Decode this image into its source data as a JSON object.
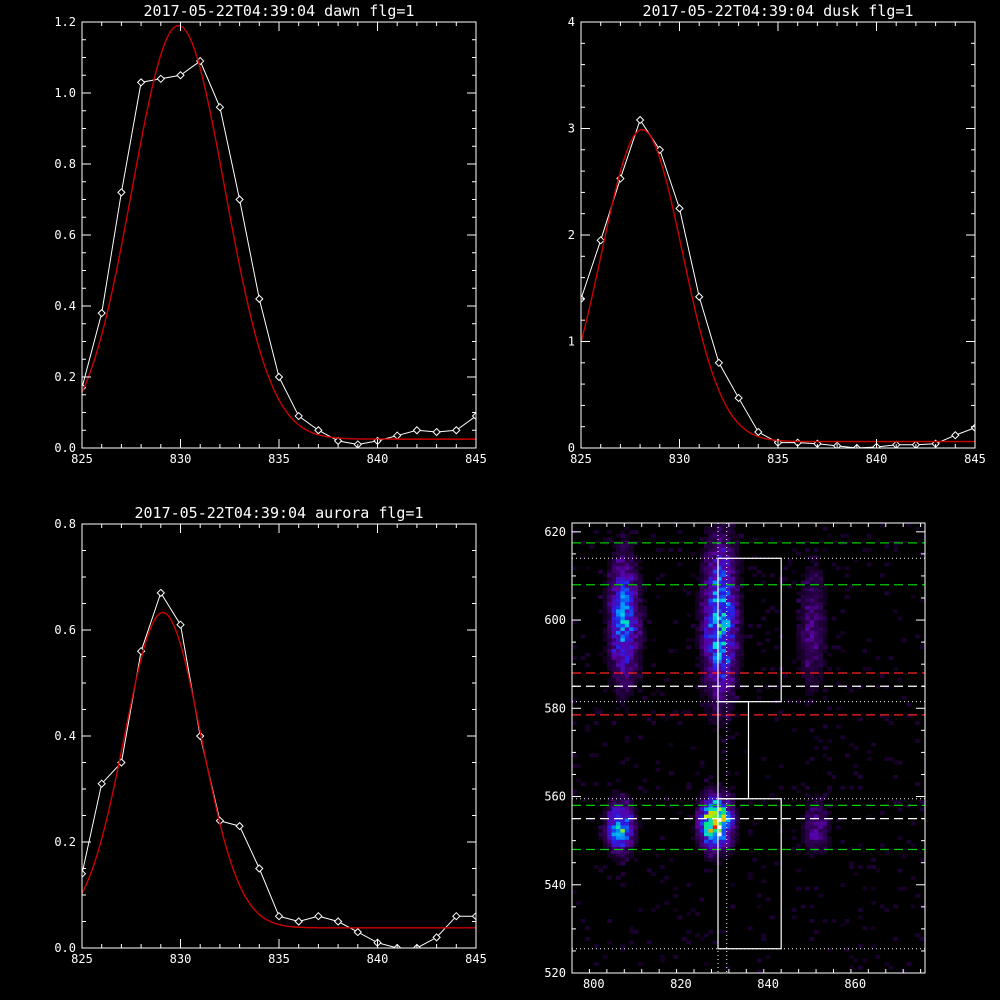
{
  "chart_data": [
    {
      "type": "line",
      "title": "2017-05-22T04:39:04 dawn flg=1",
      "xlim": [
        825,
        845
      ],
      "ylim": [
        0,
        1.2
      ],
      "xticks": [
        825,
        830,
        835,
        840,
        845
      ],
      "yticks": [
        0.0,
        0.2,
        0.4,
        0.6,
        0.8,
        1.0,
        1.2
      ],
      "ytick_labels": [
        "0.0",
        "0.2",
        "0.4",
        "0.6",
        "0.8",
        "1.0",
        "1.2"
      ],
      "grid": false,
      "series": [
        {
          "color": "#ffffff",
          "marker": "diamond",
          "x": [
            825,
            826,
            827,
            828,
            829,
            830,
            831,
            832,
            833,
            834,
            835,
            836,
            837,
            838,
            839,
            840,
            841,
            842,
            843,
            844,
            845
          ],
          "y": [
            0.17,
            0.38,
            0.72,
            1.03,
            1.04,
            1.05,
            1.09,
            0.96,
            0.7,
            0.42,
            0.2,
            0.09,
            0.05,
            0.02,
            0.01,
            0.02,
            0.035,
            0.05,
            0.045,
            0.05,
            0.09
          ]
        },
        {
          "color": "#cc0000",
          "marker": "none",
          "fit": "gaussian",
          "peak": 1.165,
          "center": 829.9,
          "sigma": 2.35,
          "offset": 0.025
        }
      ]
    },
    {
      "type": "line",
      "title": "2017-05-22T04:39:04 dusk flg=1",
      "xlim": [
        825,
        845
      ],
      "ylim": [
        0,
        4
      ],
      "xticks": [
        825,
        830,
        835,
        840,
        845
      ],
      "yticks": [
        0,
        1,
        2,
        3,
        4
      ],
      "ytick_labels": [
        "0",
        "1",
        "2",
        "3",
        "4"
      ],
      "grid": false,
      "series": [
        {
          "color": "#ffffff",
          "marker": "diamond",
          "x": [
            825,
            826,
            827,
            828,
            829,
            830,
            831,
            832,
            833,
            834,
            835,
            836,
            837,
            838,
            839,
            840,
            841,
            842,
            843,
            844,
            845
          ],
          "y": [
            1.4,
            1.95,
            2.53,
            3.08,
            2.8,
            2.25,
            1.42,
            0.8,
            0.47,
            0.15,
            0.05,
            0.05,
            0.04,
            0.02,
            0.0,
            0.01,
            0.03,
            0.03,
            0.04,
            0.12,
            0.19
          ]
        },
        {
          "color": "#cc0000",
          "marker": "none",
          "fit": "gaussian",
          "peak": 2.93,
          "center": 828.1,
          "sigma": 2.05,
          "offset": 0.06
        }
      ]
    },
    {
      "type": "line",
      "title": "2017-05-22T04:39:04 aurora flg=1",
      "xlim": [
        825,
        845
      ],
      "ylim": [
        0,
        0.8
      ],
      "xticks": [
        825,
        830,
        835,
        840,
        845
      ],
      "yticks": [
        0.0,
        0.2,
        0.4,
        0.6,
        0.8
      ],
      "ytick_labels": [
        "0.0",
        "0.2",
        "0.4",
        "0.6",
        "0.8"
      ],
      "grid": false,
      "series": [
        {
          "color": "#ffffff",
          "marker": "diamond",
          "x": [
            825,
            826,
            827,
            828,
            829,
            830,
            831,
            832,
            833,
            834,
            835,
            836,
            837,
            838,
            839,
            840,
            841,
            842,
            843,
            844,
            845
          ],
          "y": [
            0.14,
            0.31,
            0.35,
            0.56,
            0.67,
            0.61,
            0.4,
            0.24,
            0.23,
            0.15,
            0.06,
            0.05,
            0.06,
            0.05,
            0.03,
            0.01,
            0.0,
            0.0,
            0.02,
            0.06,
            0.06
          ]
        },
        {
          "color": "#cc0000",
          "marker": "none",
          "fit": "gaussian",
          "peak": 0.595,
          "center": 829.1,
          "sigma": 1.95,
          "offset": 0.038
        }
      ]
    },
    {
      "type": "heatmap",
      "title": "",
      "xlim": [
        795,
        876
      ],
      "ylim": [
        520,
        622
      ],
      "xticks": [
        800,
        820,
        840,
        860
      ],
      "yticks": [
        520,
        540,
        560,
        580,
        600,
        620
      ],
      "ytick_labels": [
        "520",
        "540",
        "560",
        "580",
        "600",
        "620"
      ],
      "grid": false,
      "colormap": "rainbow",
      "emission_blobs": [
        {
          "x": 807,
          "y": 600,
          "sx": 2.2,
          "sy": 9,
          "intensity": 0.45
        },
        {
          "x": 829,
          "y": 600,
          "sx": 2.4,
          "sy": 11,
          "intensity": 0.55
        },
        {
          "x": 850,
          "y": 598,
          "sx": 2.0,
          "sy": 9,
          "intensity": 0.18
        },
        {
          "x": 806,
          "y": 553,
          "sx": 2.0,
          "sy": 3.5,
          "intensity": 0.55
        },
        {
          "x": 828,
          "y": 554,
          "sx": 2.2,
          "sy": 3.5,
          "intensity": 1.0
        },
        {
          "x": 851,
          "y": 553,
          "sx": 2.0,
          "sy": 4,
          "intensity": 0.2
        }
      ],
      "dashed_lines": [
        {
          "y": 617.5,
          "color": "#00cc00"
        },
        {
          "y": 608,
          "color": "#00cc00"
        },
        {
          "y": 588,
          "color": "#ff2020"
        },
        {
          "y": 578.5,
          "color": "#ff2020"
        },
        {
          "y": 585,
          "color": "#ffffff"
        },
        {
          "y": 555,
          "color": "#ffffff"
        },
        {
          "y": 558,
          "color": "#00cc00"
        },
        {
          "y": 548,
          "color": "#00cc00"
        }
      ],
      "dotted_lines_y": [
        614,
        581.5,
        559.5,
        525.5
      ],
      "dotted_lines_x": [
        828.5,
        830.5
      ],
      "regions": [
        {
          "x0": 828.5,
          "x1": 843,
          "y0": 581.5,
          "y1": 614
        },
        {
          "x0": 828.5,
          "x1": 835.5,
          "y0": 559.5,
          "y1": 581.5
        },
        {
          "x0": 828.5,
          "x1": 843,
          "y0": 525.5,
          "y1": 559.5
        }
      ]
    }
  ]
}
